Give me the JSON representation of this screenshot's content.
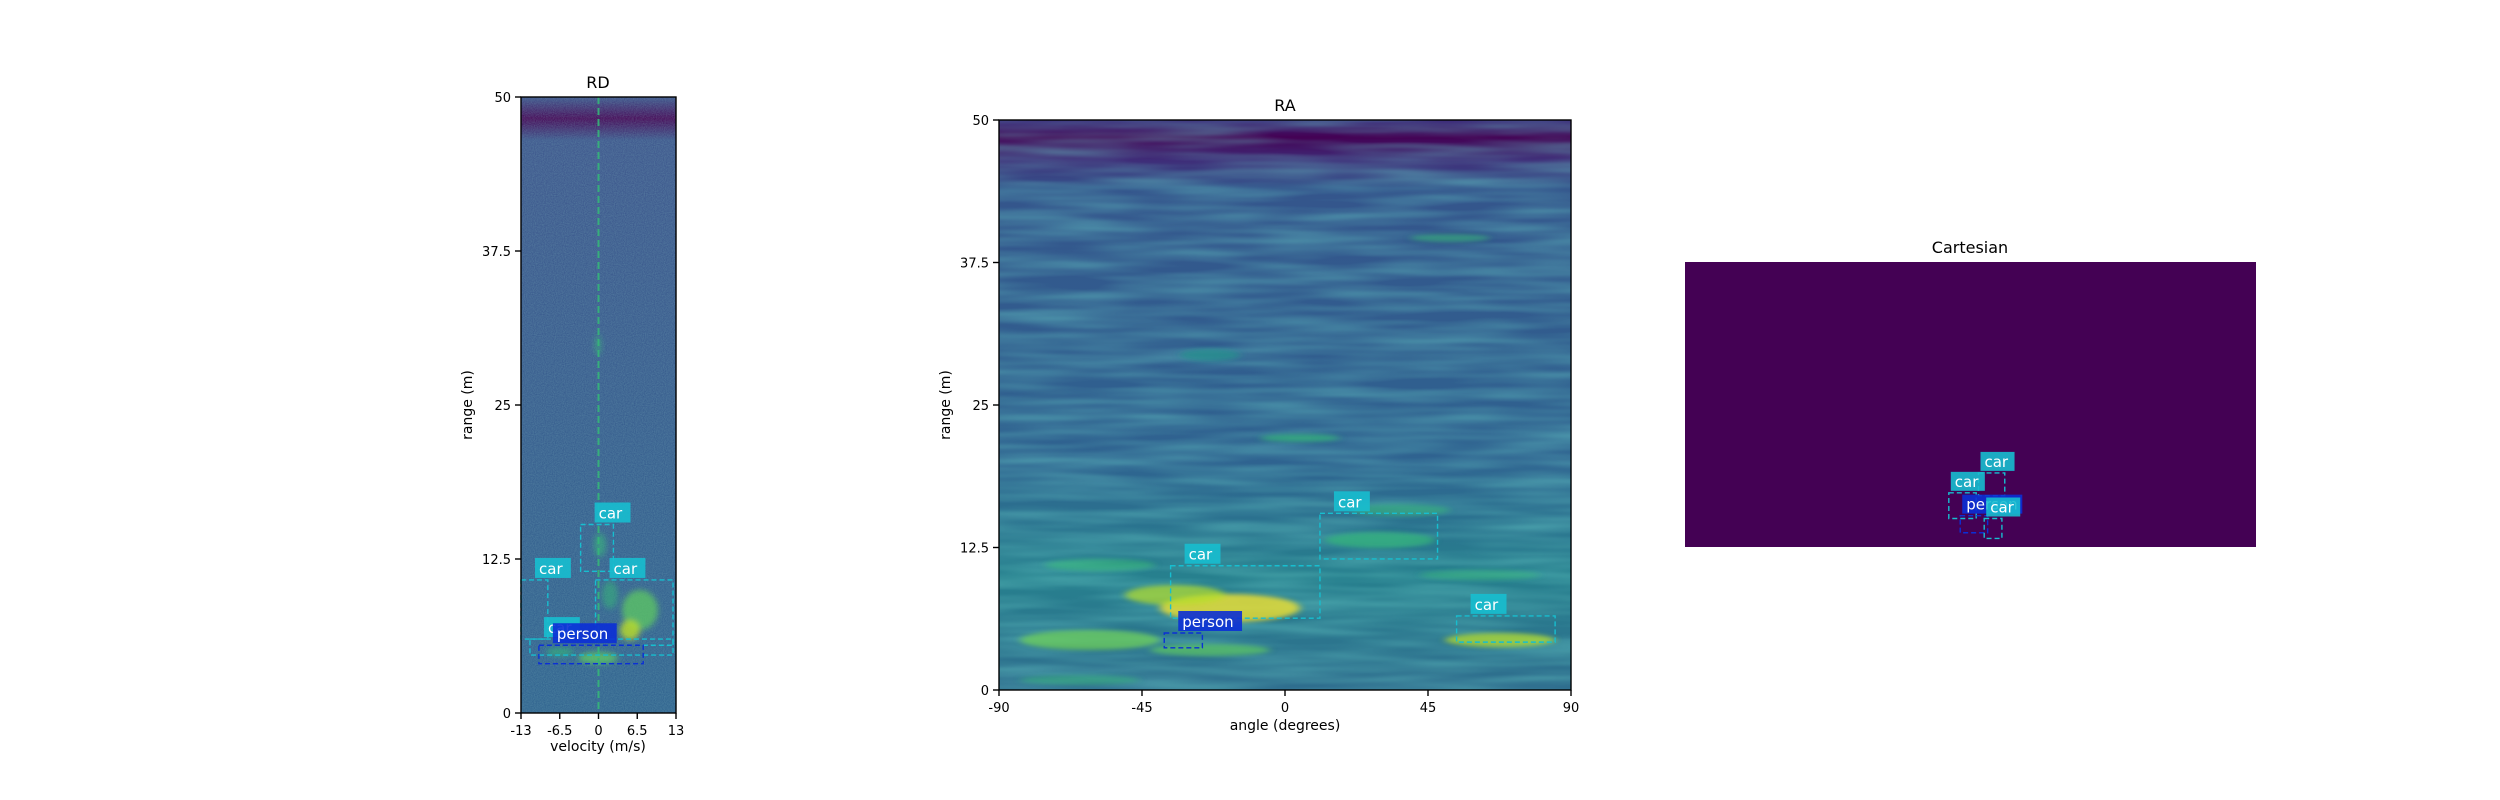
{
  "colors": {
    "car": "#17becf",
    "person": "#0b2fd6",
    "viridis_dark": "#440154",
    "viridis_blue": "#3b528b",
    "viridis_teal": "#21918c",
    "viridis_green": "#5ec962",
    "viridis_yellow": "#fde725"
  },
  "chart_data": [
    {
      "type": "heatmap",
      "title": "RD",
      "xlabel": "velocity (m/s)",
      "ylabel": "range (m)",
      "xlim": [
        -13,
        13
      ],
      "ylim": [
        0,
        50
      ],
      "xticks": [
        "-13",
        "-6.5",
        "0",
        "6.5",
        "13"
      ],
      "yticks": [
        "0",
        "12.5",
        "25",
        "37.5",
        "50"
      ],
      "boxes": [
        {
          "label": "car",
          "x0": -3,
          "x1": 2.5,
          "y0": 11.5,
          "y1": 15.3
        },
        {
          "label": "car",
          "x0": -0.5,
          "x1": 12.5,
          "y0": 5.5,
          "y1": 10.8
        },
        {
          "label": "car",
          "x0": -13,
          "x1": -8.5,
          "y0": 6.0,
          "y1": 10.8
        },
        {
          "label": "car",
          "x0": -11.5,
          "x1": 12.5,
          "y0": 4.7,
          "y1": 6.0
        },
        {
          "label": "person",
          "x0": -10,
          "x1": 7.5,
          "y0": 4.0,
          "y1": 5.5
        }
      ]
    },
    {
      "type": "heatmap",
      "title": "RA",
      "xlabel": "angle (degrees)",
      "ylabel": "range (m)",
      "xlim": [
        -90,
        90
      ],
      "ylim": [
        0,
        50
      ],
      "xticks": [
        "-90",
        "-45",
        "0",
        "45",
        "90"
      ],
      "yticks": [
        "0",
        "12.5",
        "25",
        "37.5",
        "50"
      ],
      "boxes": [
        {
          "label": "car",
          "x0": 11,
          "x1": 48,
          "y0": 11.5,
          "y1": 15.5
        },
        {
          "label": "car",
          "x0": -36,
          "x1": 11,
          "y0": 6.3,
          "y1": 10.9
        },
        {
          "label": "car",
          "x0": 54,
          "x1": 85,
          "y0": 4.2,
          "y1": 6.5
        },
        {
          "label": "person",
          "x0": -38,
          "x1": -26,
          "y0": 3.7,
          "y1": 5.0
        }
      ]
    },
    {
      "type": "heatmap",
      "title": "Cartesian",
      "xlabel": "",
      "ylabel": "",
      "boxes": [
        {
          "label": "car",
          "fx0": 0.514,
          "fx1": 0.56,
          "fy0": 0.74,
          "fy1": 0.82
        },
        {
          "label": "car",
          "fx0": 0.462,
          "fx1": 0.51,
          "fy0": 0.81,
          "fy1": 0.9
        },
        {
          "label": "person",
          "fx0": 0.482,
          "fx1": 0.53,
          "fy0": 0.89,
          "fy1": 0.95
        },
        {
          "label": "car",
          "fx0": 0.524,
          "fx1": 0.555,
          "fy0": 0.9,
          "fy1": 0.97
        }
      ]
    }
  ]
}
